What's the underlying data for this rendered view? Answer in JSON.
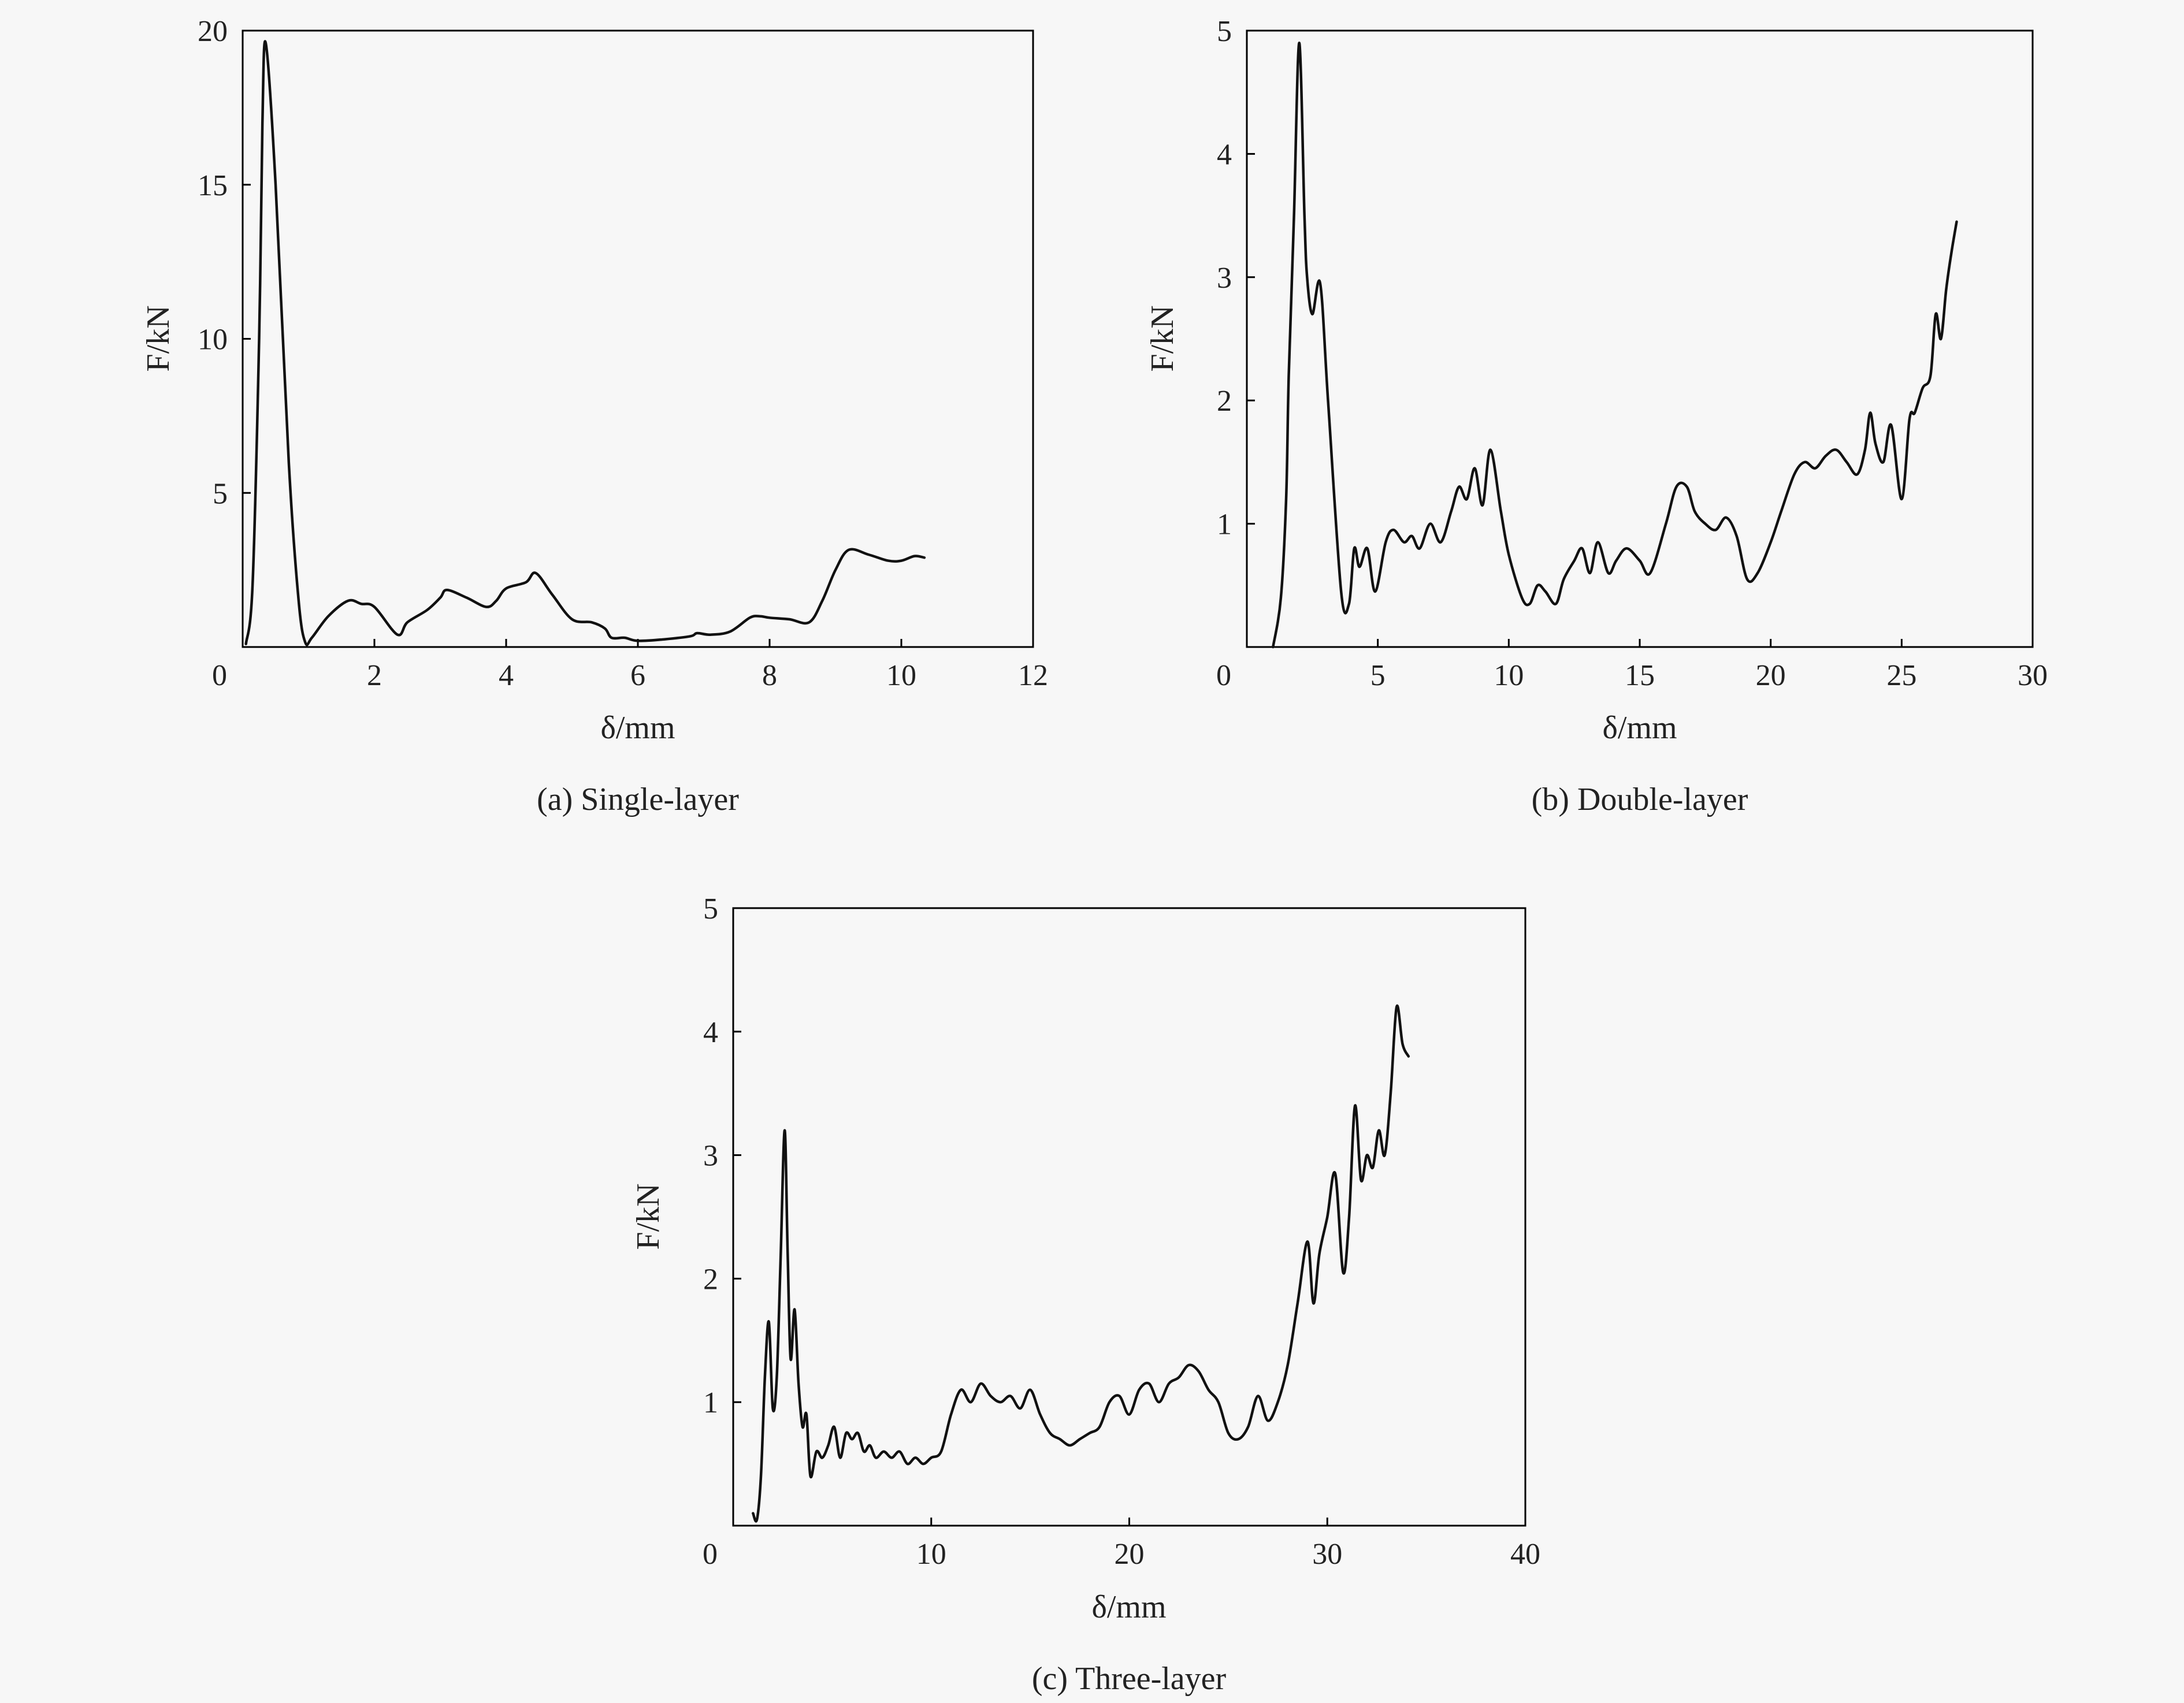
{
  "chart_data": [
    {
      "id": "a",
      "type": "line",
      "caption": "(a) Single-layer",
      "xlabel": "δ/mm",
      "ylabel": "F/kN",
      "xlim": [
        0,
        12
      ],
      "ylim": [
        0,
        20
      ],
      "xticks": [
        0,
        2,
        4,
        6,
        8,
        10,
        12
      ],
      "yticks": [
        5,
        10,
        15,
        20
      ],
      "x_origin_label": "0",
      "grid": false,
      "series": [
        {
          "color": "#111111",
          "x": [
            0.05,
            0.15,
            0.25,
            0.3,
            0.35,
            0.5,
            0.7,
            0.85,
            0.95,
            1.05,
            1.3,
            1.6,
            1.8,
            2.0,
            2.35,
            2.5,
            2.8,
            3.0,
            3.1,
            3.4,
            3.7,
            3.85,
            4.0,
            4.3,
            4.45,
            4.7,
            5.0,
            5.3,
            5.5,
            5.6,
            5.8,
            6.0,
            6.4,
            6.8,
            6.9,
            7.1,
            7.4,
            7.7,
            7.85,
            8.0,
            8.3,
            8.6,
            8.8,
            9.0,
            9.2,
            9.5,
            9.8,
            10.0,
            10.2,
            10.35
          ],
          "y": [
            0.1,
            2.0,
            10.0,
            17.0,
            19.6,
            15.0,
            6.0,
            1.5,
            0.15,
            0.3,
            1.0,
            1.5,
            1.4,
            1.3,
            0.4,
            0.8,
            1.2,
            1.6,
            1.85,
            1.6,
            1.3,
            1.5,
            1.9,
            2.1,
            2.4,
            1.7,
            0.9,
            0.8,
            0.6,
            0.3,
            0.3,
            0.2,
            0.25,
            0.35,
            0.45,
            0.4,
            0.5,
            0.95,
            1.0,
            0.95,
            0.9,
            0.8,
            1.5,
            2.5,
            3.15,
            3.0,
            2.8,
            2.8,
            2.95,
            2.9
          ]
        }
      ]
    },
    {
      "id": "b",
      "type": "line",
      "caption": "(b) Double-layer",
      "xlabel": "δ/mm",
      "ylabel": "F/kN",
      "xlim": [
        0,
        30
      ],
      "ylim": [
        0,
        5
      ],
      "xticks": [
        0,
        5,
        10,
        15,
        20,
        25,
        30
      ],
      "yticks": [
        1,
        2,
        3,
        4,
        5
      ],
      "x_origin_label": "0",
      "grid": false,
      "series": [
        {
          "color": "#111111",
          "x": [
            1.0,
            1.3,
            1.5,
            1.6,
            1.8,
            2.0,
            2.2,
            2.3,
            2.5,
            2.8,
            3.1,
            3.6,
            3.9,
            4.1,
            4.3,
            4.6,
            4.9,
            5.3,
            5.6,
            6.0,
            6.3,
            6.6,
            7.0,
            7.4,
            7.8,
            8.1,
            8.4,
            8.7,
            9.0,
            9.3,
            9.7,
            10.0,
            10.5,
            10.8,
            11.1,
            11.4,
            11.8,
            12.1,
            12.5,
            12.8,
            13.1,
            13.4,
            13.8,
            14.1,
            14.5,
            15.0,
            15.4,
            16.0,
            16.4,
            16.8,
            17.1,
            17.5,
            17.9,
            18.3,
            18.7,
            19.1,
            19.5,
            20.0,
            20.4,
            20.9,
            21.3,
            21.7,
            22.1,
            22.5,
            22.9,
            23.3,
            23.6,
            23.8,
            24.0,
            24.3,
            24.6,
            25.0,
            25.3,
            25.5,
            25.8,
            26.1,
            26.3,
            26.5,
            26.7,
            26.9,
            27.1
          ],
          "y": [
            0.0,
            0.4,
            1.2,
            2.2,
            3.5,
            4.9,
            3.5,
            3.0,
            2.7,
            2.95,
            2.0,
            0.45,
            0.35,
            0.8,
            0.65,
            0.8,
            0.45,
            0.85,
            0.95,
            0.85,
            0.9,
            0.8,
            1.0,
            0.85,
            1.1,
            1.3,
            1.2,
            1.45,
            1.15,
            1.6,
            1.1,
            0.75,
            0.4,
            0.35,
            0.5,
            0.45,
            0.35,
            0.55,
            0.7,
            0.8,
            0.6,
            0.85,
            0.6,
            0.7,
            0.8,
            0.7,
            0.6,
            1.0,
            1.3,
            1.3,
            1.1,
            1.0,
            0.95,
            1.05,
            0.9,
            0.55,
            0.6,
            0.85,
            1.1,
            1.4,
            1.5,
            1.45,
            1.55,
            1.6,
            1.5,
            1.4,
            1.6,
            1.9,
            1.65,
            1.5,
            1.8,
            1.2,
            1.85,
            1.9,
            2.1,
            2.2,
            2.7,
            2.5,
            2.9,
            3.2,
            3.45
          ]
        }
      ]
    },
    {
      "id": "c",
      "type": "line",
      "caption": "(c) Three-layer",
      "xlabel": "δ/mm",
      "ylabel": "F/kN",
      "xlim": [
        0,
        40
      ],
      "ylim": [
        0,
        5
      ],
      "xticks": [
        0,
        10,
        20,
        30,
        40
      ],
      "yticks": [
        1,
        2,
        3,
        4,
        5
      ],
      "x_origin_label": "0",
      "grid": false,
      "series": [
        {
          "color": "#111111",
          "x": [
            1.0,
            1.2,
            1.4,
            1.6,
            1.8,
            2.0,
            2.2,
            2.4,
            2.6,
            2.75,
            2.9,
            3.1,
            3.3,
            3.5,
            3.7,
            3.9,
            4.2,
            4.5,
            4.8,
            5.1,
            5.4,
            5.7,
            6.0,
            6.3,
            6.6,
            6.9,
            7.2,
            7.6,
            8.0,
            8.4,
            8.8,
            9.2,
            9.6,
            10.0,
            10.5,
            11.0,
            11.5,
            12.0,
            12.5,
            13.0,
            13.5,
            14.0,
            14.5,
            15.0,
            15.5,
            16.0,
            16.5,
            17.0,
            17.5,
            18.0,
            18.5,
            19.0,
            19.5,
            20.0,
            20.5,
            21.0,
            21.5,
            22.0,
            22.5,
            23.0,
            23.5,
            24.0,
            24.5,
            25.0,
            25.5,
            26.0,
            26.5,
            27.0,
            27.5,
            28.0,
            28.5,
            29.0,
            29.3,
            29.6,
            30.0,
            30.4,
            30.8,
            31.1,
            31.4,
            31.7,
            32.0,
            32.3,
            32.6,
            32.9,
            33.2,
            33.5,
            33.8,
            34.1
          ],
          "y": [
            0.1,
            0.05,
            0.4,
            1.2,
            1.65,
            0.95,
            1.2,
            2.2,
            3.2,
            2.2,
            1.35,
            1.75,
            1.15,
            0.8,
            0.9,
            0.4,
            0.6,
            0.55,
            0.65,
            0.8,
            0.55,
            0.75,
            0.7,
            0.75,
            0.6,
            0.65,
            0.55,
            0.6,
            0.55,
            0.6,
            0.5,
            0.55,
            0.5,
            0.55,
            0.6,
            0.9,
            1.1,
            1.0,
            1.15,
            1.05,
            1.0,
            1.05,
            0.95,
            1.1,
            0.9,
            0.75,
            0.7,
            0.65,
            0.7,
            0.75,
            0.8,
            1.0,
            1.05,
            0.9,
            1.1,
            1.15,
            1.0,
            1.15,
            1.2,
            1.3,
            1.25,
            1.1,
            1.0,
            0.75,
            0.7,
            0.8,
            1.05,
            0.85,
            1.0,
            1.3,
            1.8,
            2.3,
            1.8,
            2.2,
            2.5,
            2.85,
            2.05,
            2.5,
            3.4,
            2.8,
            3.0,
            2.9,
            3.2,
            3.0,
            3.5,
            4.2,
            3.9,
            3.8
          ]
        }
      ]
    }
  ]
}
